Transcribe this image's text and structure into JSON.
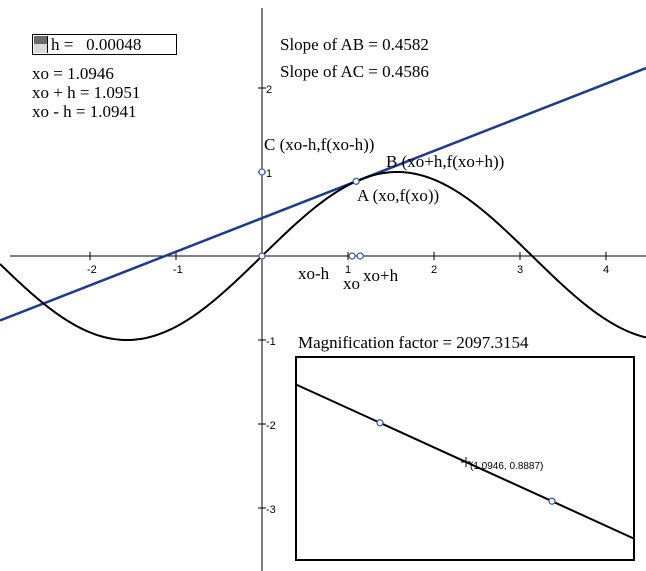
{
  "parameter": {
    "label": "h =",
    "value": "0.00048"
  },
  "readouts": {
    "xo": "xo = 1.0946",
    "xo_plus_h": "xo + h = 1.0951",
    "xo_minus_h": "xo - h = 1.0941",
    "slope_ab": "Slope of AB = 0.4582",
    "slope_ac": "Slope of AC = 0.4586",
    "magnification": "Magnification factor = 2097.3154"
  },
  "point_labels": {
    "a": "A (xo,f(xo))",
    "b": "B (xo+h,f(xo+h))",
    "c": "C (xo-h,f(xo-h))",
    "xo_minus_h": "xo-h",
    "xo": "xo",
    "xo_plus_h": "xo+h",
    "inset_point": "(1.0946, 0.8887)"
  },
  "axes": {
    "x_ticks": [
      "-2",
      "-1",
      "1",
      "2",
      "3",
      "4"
    ],
    "y_ticks": [
      "2",
      "1",
      "-1",
      "-2",
      "-3"
    ]
  },
  "colors": {
    "curve": "#000000",
    "tangent": "#1f3c8c",
    "point": "#3355aa"
  },
  "chart_data": {
    "type": "line",
    "series": [
      {
        "kind": "curve",
        "function": "sin(x)"
      },
      {
        "kind": "line",
        "points": [
          [
            1.0941,
            0.8885
          ],
          [
            1.0951,
            0.8889
          ]
        ]
      }
    ],
    "points": {
      "A": [
        1.0946,
        0.8887
      ],
      "B": [
        1.0951,
        0.8889
      ],
      "C": [
        1.0941,
        0.8885
      ]
    },
    "xlim": [
      -2.8,
      4.5
    ],
    "ylim": [
      -3.6,
      2.6
    ]
  }
}
